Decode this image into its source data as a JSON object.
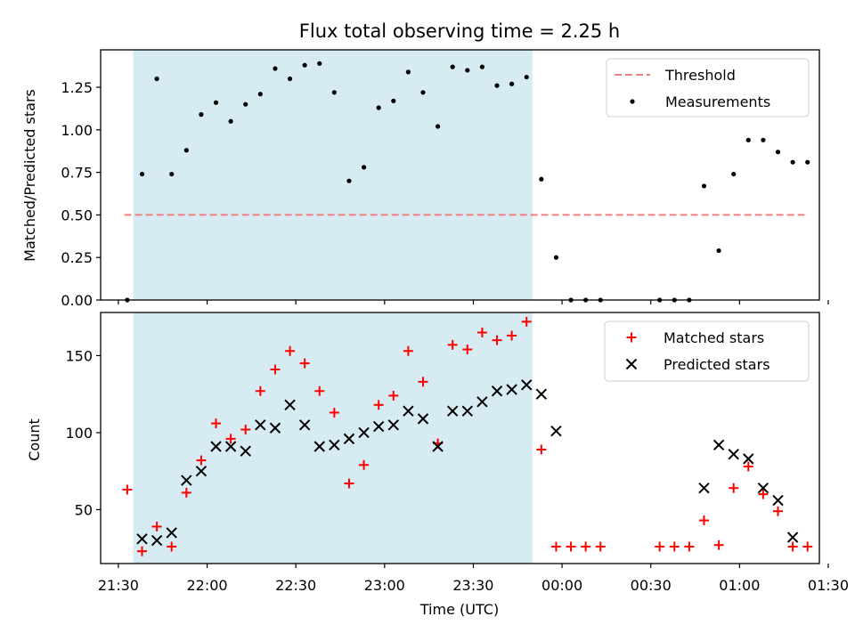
{
  "title": "Flux total observing time = 2.25 h",
  "colors": {
    "threshold": "#f08080",
    "measurement": "#000000",
    "matched": "#ff0000",
    "predicted": "#000000",
    "shade": "#add8e6"
  },
  "chart_data": [
    {
      "type": "scatter",
      "panel": "top",
      "ylabel": "Matched/Predicted stars",
      "ylim": [
        0,
        1.47
      ],
      "yticks": [
        0.0,
        0.25,
        0.5,
        0.75,
        1.0,
        1.25
      ],
      "ytick_labels": [
        "0.00",
        "0.25",
        "0.50",
        "0.75",
        "1.00",
        "1.25"
      ],
      "x_unit": "minutes after 21:00 UTC",
      "xlim": [
        24,
        267
      ],
      "shaded_span": [
        35,
        170
      ],
      "legend": {
        "position": "top-right",
        "entries": [
          "Threshold",
          "Measurements"
        ]
      },
      "threshold": {
        "name": "Threshold",
        "value": 0.5,
        "x_range": [
          32,
          262
        ],
        "style": "dashed"
      },
      "series": [
        {
          "name": "Measurements",
          "marker": "dot",
          "x": [
            33,
            38,
            43,
            48,
            53,
            58,
            63,
            68,
            73,
            78,
            83,
            88,
            93,
            98,
            103,
            108,
            113,
            118,
            123,
            128,
            133,
            138,
            143,
            148,
            153,
            158,
            163,
            168,
            173,
            178,
            183,
            188,
            193,
            213,
            218,
            223,
            228,
            233,
            238,
            243,
            248,
            253,
            258,
            263
          ],
          "y": [
            0.0,
            0.74,
            1.3,
            0.74,
            0.88,
            1.09,
            1.16,
            1.05,
            1.15,
            1.21,
            1.36,
            1.3,
            1.38,
            1.39,
            1.22,
            0.7,
            0.78,
            1.13,
            1.17,
            1.34,
            1.22,
            1.02,
            1.37,
            1.35,
            1.37,
            1.26,
            1.27,
            1.31,
            0.71,
            0.25,
            0.0,
            0.0,
            0.0,
            0.0,
            0.0,
            0.0,
            0.67,
            0.29,
            0.74,
            0.94,
            0.94,
            0.87,
            0.81,
            0.81
          ]
        }
      ]
    },
    {
      "type": "scatter",
      "panel": "bottom",
      "ylabel": "Count",
      "xlabel": "Time (UTC)",
      "ylim": [
        15,
        178
      ],
      "yticks": [
        50,
        100,
        150
      ],
      "ytick_labels": [
        "50",
        "100",
        "150"
      ],
      "x_unit": "minutes after 21:00 UTC",
      "xlim": [
        24,
        267
      ],
      "xticks": [
        30,
        60,
        90,
        120,
        150,
        180,
        210,
        240,
        270
      ],
      "xtick_labels": [
        "21:30",
        "22:00",
        "22:30",
        "23:00",
        "23:30",
        "00:00",
        "00:30",
        "01:00",
        "01:30"
      ],
      "shaded_span": [
        35,
        170
      ],
      "legend": {
        "position": "top-right",
        "entries": [
          "Matched stars",
          "Predicted stars"
        ]
      },
      "series": [
        {
          "name": "Matched stars",
          "marker": "plus",
          "x": [
            33,
            38,
            43,
            48,
            53,
            58,
            63,
            68,
            73,
            78,
            83,
            88,
            93,
            98,
            103,
            108,
            113,
            118,
            123,
            128,
            133,
            138,
            143,
            148,
            153,
            158,
            163,
            168,
            173,
            178,
            183,
            188,
            193,
            213,
            218,
            223,
            228,
            233,
            238,
            243,
            248,
            253,
            258,
            263
          ],
          "y": [
            63,
            23,
            39,
            26,
            61,
            82,
            106,
            96,
            102,
            127,
            141,
            153,
            145,
            127,
            113,
            67,
            79,
            118,
            124,
            153,
            133,
            93,
            157,
            154,
            165,
            160,
            163,
            172,
            89,
            26,
            26,
            26,
            26,
            26,
            26,
            26,
            43,
            27,
            64,
            78,
            60,
            49,
            26,
            26
          ]
        },
        {
          "name": "Predicted stars",
          "marker": "x",
          "x": [
            38,
            43,
            48,
            53,
            58,
            63,
            68,
            73,
            78,
            83,
            88,
            93,
            98,
            103,
            108,
            113,
            118,
            123,
            128,
            133,
            138,
            143,
            148,
            153,
            158,
            163,
            168,
            173,
            178,
            228,
            233,
            238,
            243,
            248,
            253,
            258
          ],
          "y": [
            31,
            30,
            35,
            69,
            75,
            91,
            91,
            88,
            105,
            103,
            118,
            105,
            91,
            92,
            96,
            100,
            104,
            105,
            114,
            109,
            91,
            114,
            114,
            120,
            127,
            128,
            131,
            125,
            101,
            64,
            92,
            86,
            83,
            64,
            56,
            32
          ]
        }
      ]
    }
  ]
}
